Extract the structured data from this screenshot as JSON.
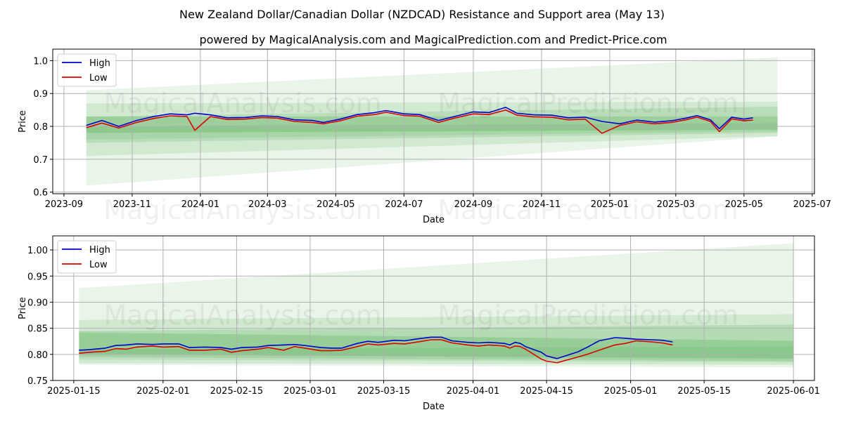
{
  "title": "New Zealand Dollar/Canadian Dollar (NZDCAD) Resistance and Support area (May 13)",
  "subtitle": "powered by MagicalAnalysis.com and MagicalPrediction.com and Predict-Price.com",
  "watermark": {
    "left": "MagicalAnalysis.com",
    "right": "MagicalPrediction.com"
  },
  "colors": {
    "high": "#0000cc",
    "low": "#dd0000",
    "band": "#2e9b2e"
  },
  "chart_data": [
    {
      "type": "line",
      "xlabel": "Date",
      "ylabel": "Price",
      "xlim": [
        "2023-08-22",
        "2025-07-03"
      ],
      "ylim": [
        0.595,
        1.035
      ],
      "yticks": [
        "0.6",
        "0.7",
        "0.8",
        "0.9",
        "1.0"
      ],
      "xticks": [
        "2023-09",
        "2023-11",
        "2024-01",
        "2024-03",
        "2024-05",
        "2024-07",
        "2024-09",
        "2024-11",
        "2025-01",
        "2025-03",
        "2025-05",
        "2025-07"
      ],
      "legend": {
        "position": "top-left",
        "entries": [
          "High",
          "Low"
        ]
      },
      "grid": true,
      "series": [
        {
          "name": "High",
          "x": [
            "2023-09-21",
            "2023-10-05",
            "2023-10-20",
            "2023-11-05",
            "2023-11-20",
            "2023-12-05",
            "2023-12-20",
            "2023-12-27",
            "2024-01-10",
            "2024-01-25",
            "2024-02-10",
            "2024-02-25",
            "2024-03-10",
            "2024-03-25",
            "2024-04-10",
            "2024-04-20",
            "2024-05-05",
            "2024-05-20",
            "2024-06-05",
            "2024-06-15",
            "2024-07-01",
            "2024-07-15",
            "2024-08-01",
            "2024-08-15",
            "2024-09-01",
            "2024-09-15",
            "2024-09-30",
            "2024-10-10",
            "2024-10-25",
            "2024-11-10",
            "2024-11-25",
            "2024-12-10",
            "2024-12-25",
            "2025-01-10",
            "2025-01-25",
            "2025-02-10",
            "2025-02-25",
            "2025-03-10",
            "2025-03-20",
            "2025-04-01",
            "2025-04-09",
            "2025-04-20",
            "2025-05-01",
            "2025-05-09"
          ],
          "values": [
            0.803,
            0.818,
            0.8,
            0.818,
            0.83,
            0.838,
            0.835,
            0.84,
            0.835,
            0.826,
            0.827,
            0.832,
            0.83,
            0.82,
            0.818,
            0.812,
            0.822,
            0.836,
            0.842,
            0.848,
            0.838,
            0.836,
            0.818,
            0.83,
            0.844,
            0.842,
            0.858,
            0.84,
            0.835,
            0.834,
            0.826,
            0.828,
            0.815,
            0.808,
            0.819,
            0.813,
            0.817,
            0.825,
            0.833,
            0.82,
            0.793,
            0.828,
            0.822,
            0.826
          ]
        },
        {
          "name": "Low",
          "x": [
            "2023-09-21",
            "2023-10-05",
            "2023-10-20",
            "2023-11-05",
            "2023-11-20",
            "2023-12-05",
            "2023-12-20",
            "2023-12-27",
            "2024-01-10",
            "2024-01-25",
            "2024-02-10",
            "2024-02-25",
            "2024-03-10",
            "2024-03-25",
            "2024-04-10",
            "2024-04-20",
            "2024-05-05",
            "2024-05-20",
            "2024-06-05",
            "2024-06-15",
            "2024-07-01",
            "2024-07-15",
            "2024-08-01",
            "2024-08-15",
            "2024-09-01",
            "2024-09-15",
            "2024-09-30",
            "2024-10-10",
            "2024-10-25",
            "2024-11-10",
            "2024-11-25",
            "2024-12-10",
            "2024-12-25",
            "2025-01-10",
            "2025-01-25",
            "2025-02-10",
            "2025-02-25",
            "2025-03-10",
            "2025-03-20",
            "2025-04-01",
            "2025-04-09",
            "2025-04-20",
            "2025-05-01",
            "2025-05-09"
          ],
          "values": [
            0.796,
            0.81,
            0.795,
            0.812,
            0.824,
            0.832,
            0.83,
            0.788,
            0.83,
            0.821,
            0.822,
            0.827,
            0.825,
            0.815,
            0.812,
            0.808,
            0.817,
            0.831,
            0.836,
            0.843,
            0.833,
            0.831,
            0.812,
            0.825,
            0.838,
            0.836,
            0.85,
            0.834,
            0.829,
            0.828,
            0.82,
            0.822,
            0.779,
            0.803,
            0.814,
            0.808,
            0.812,
            0.82,
            0.828,
            0.815,
            0.784,
            0.823,
            0.817,
            0.819
          ]
        }
      ]
    },
    {
      "type": "line",
      "xlabel": "Date",
      "ylabel": "Price",
      "xlim": [
        "2025-01-11",
        "2025-06-05"
      ],
      "ylim": [
        0.75,
        1.027
      ],
      "yticks": [
        "0.75",
        "0.80",
        "0.85",
        "0.90",
        "0.95",
        "1.00"
      ],
      "xticks": [
        "2025-01-15",
        "2025-02-01",
        "2025-02-15",
        "2025-03-01",
        "2025-03-15",
        "2025-04-01",
        "2025-04-15",
        "2025-05-01",
        "2025-05-15",
        "2025-06-01"
      ],
      "legend": {
        "position": "top-left",
        "entries": [
          "High",
          "Low"
        ]
      },
      "grid": true,
      "series": [
        {
          "name": "High",
          "x": [
            "2025-01-16",
            "2025-01-18",
            "2025-01-21",
            "2025-01-23",
            "2025-01-25",
            "2025-01-27",
            "2025-01-30",
            "2025-02-01",
            "2025-02-04",
            "2025-02-06",
            "2025-02-09",
            "2025-02-12",
            "2025-02-14",
            "2025-02-16",
            "2025-02-19",
            "2025-02-21",
            "2025-02-24",
            "2025-02-26",
            "2025-02-28",
            "2025-03-03",
            "2025-03-05",
            "2025-03-07",
            "2025-03-10",
            "2025-03-12",
            "2025-03-14",
            "2025-03-17",
            "2025-03-19",
            "2025-03-21",
            "2025-03-24",
            "2025-03-26",
            "2025-03-28",
            "2025-03-31",
            "2025-04-02",
            "2025-04-04",
            "2025-04-07",
            "2025-04-08",
            "2025-04-09",
            "2025-04-10",
            "2025-04-11",
            "2025-04-14",
            "2025-04-15",
            "2025-04-17",
            "2025-04-21",
            "2025-04-23",
            "2025-04-25",
            "2025-04-28",
            "2025-04-30",
            "2025-05-02",
            "2025-05-05",
            "2025-05-07",
            "2025-05-09"
          ],
          "values": [
            0.808,
            0.809,
            0.812,
            0.817,
            0.818,
            0.82,
            0.819,
            0.82,
            0.82,
            0.813,
            0.814,
            0.813,
            0.81,
            0.813,
            0.814,
            0.817,
            0.818,
            0.819,
            0.817,
            0.813,
            0.812,
            0.812,
            0.821,
            0.825,
            0.823,
            0.827,
            0.826,
            0.829,
            0.833,
            0.833,
            0.826,
            0.823,
            0.822,
            0.823,
            0.821,
            0.818,
            0.823,
            0.821,
            0.815,
            0.804,
            0.797,
            0.792,
            0.805,
            0.815,
            0.826,
            0.832,
            0.831,
            0.829,
            0.828,
            0.827,
            0.824
          ]
        },
        {
          "name": "Low",
          "x": [
            "2025-01-16",
            "2025-01-18",
            "2025-01-21",
            "2025-01-23",
            "2025-01-25",
            "2025-01-27",
            "2025-01-30",
            "2025-02-01",
            "2025-02-04",
            "2025-02-06",
            "2025-02-09",
            "2025-02-12",
            "2025-02-14",
            "2025-02-16",
            "2025-02-19",
            "2025-02-21",
            "2025-02-24",
            "2025-02-26",
            "2025-02-28",
            "2025-03-03",
            "2025-03-05",
            "2025-03-07",
            "2025-03-10",
            "2025-03-12",
            "2025-03-14",
            "2025-03-17",
            "2025-03-19",
            "2025-03-21",
            "2025-03-24",
            "2025-03-26",
            "2025-03-28",
            "2025-03-31",
            "2025-04-02",
            "2025-04-04",
            "2025-04-07",
            "2025-04-08",
            "2025-04-09",
            "2025-04-10",
            "2025-04-11",
            "2025-04-14",
            "2025-04-15",
            "2025-04-17",
            "2025-04-21",
            "2025-04-23",
            "2025-04-25",
            "2025-04-28",
            "2025-04-30",
            "2025-05-02",
            "2025-05-05",
            "2025-05-07",
            "2025-05-09"
          ],
          "values": [
            0.802,
            0.804,
            0.806,
            0.811,
            0.81,
            0.814,
            0.816,
            0.814,
            0.815,
            0.808,
            0.808,
            0.81,
            0.804,
            0.807,
            0.81,
            0.813,
            0.808,
            0.815,
            0.812,
            0.807,
            0.807,
            0.808,
            0.815,
            0.82,
            0.818,
            0.821,
            0.82,
            0.823,
            0.828,
            0.828,
            0.822,
            0.818,
            0.816,
            0.818,
            0.816,
            0.812,
            0.816,
            0.815,
            0.81,
            0.791,
            0.787,
            0.784,
            0.795,
            0.801,
            0.808,
            0.818,
            0.821,
            0.826,
            0.824,
            0.822,
            0.818
          ]
        }
      ]
    }
  ]
}
